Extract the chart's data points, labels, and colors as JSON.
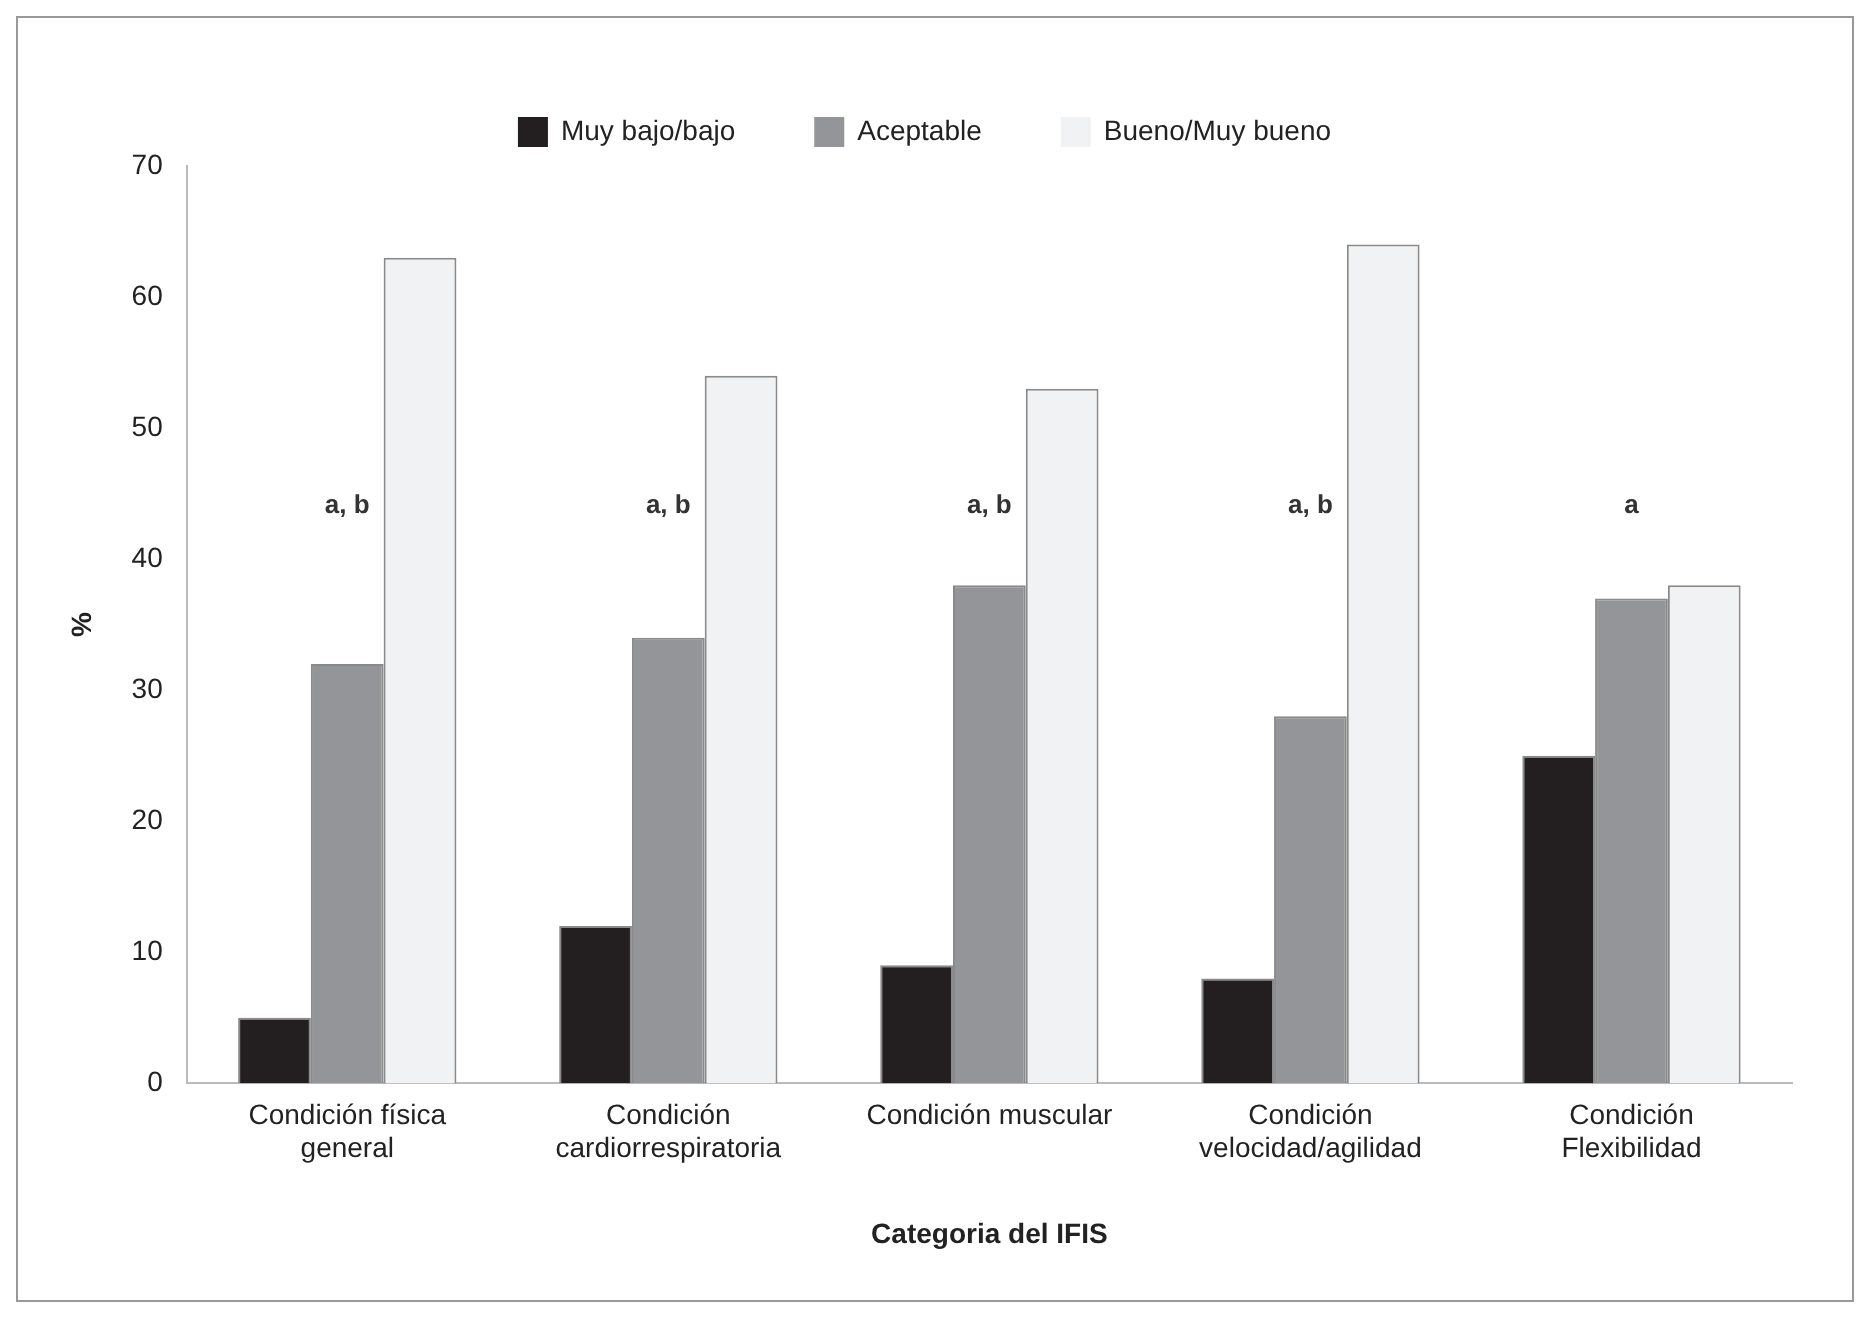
{
  "chart_data": {
    "type": "bar",
    "xlabel": "Categoria del IFIS",
    "ylabel": "%",
    "categories": [
      "Condición física general",
      "Condición cardiorrespiratoria",
      "Condición muscular",
      "Condición velocidad/agilidad",
      "Condición Flexibilidad"
    ],
    "series": [
      {
        "name": "Muy bajo/bajo",
        "color": "#231f20",
        "values": [
          5,
          12,
          9,
          8,
          25
        ]
      },
      {
        "name": "Aceptable",
        "color": "#939598",
        "values": [
          32,
          34,
          38,
          28,
          37
        ]
      },
      {
        "name": "Bueno/Muy bueno",
        "color": "#f1f2f4",
        "values": [
          63,
          54,
          53,
          64,
          38
        ]
      }
    ],
    "ylim": [
      0,
      70
    ],
    "yticks": [
      0,
      10,
      20,
      30,
      40,
      50,
      60,
      70
    ],
    "grid": false,
    "legend": "top",
    "annotations": [
      "a, b",
      "a, b",
      "a, b",
      "a, b",
      "a"
    ]
  }
}
